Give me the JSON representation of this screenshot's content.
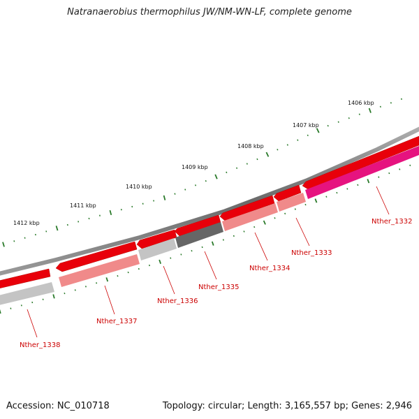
{
  "header": {
    "title": "Natranaerobius thermophilus JW/NM-WN-LF, complete genome"
  },
  "footer": {
    "accession": "Accession: NC_010718",
    "summary": "Topology: circular; Length: 3,165,557 bp; Genes: 2,946"
  },
  "colors": {
    "backbone": "#7a7a7a",
    "tick": "#2a7a2a",
    "label": "#cc0000"
  },
  "kbp_markers": [
    "1406 kbp",
    "1407 kbp",
    "1408 kbp",
    "1409 kbp",
    "1410 kbp",
    "1411 kbp",
    "1412 kbp"
  ],
  "genes": [
    {
      "label": "Nther_1332",
      "color": "#e6137f"
    },
    {
      "label": "Nther_1333",
      "color": "#f08a8a"
    },
    {
      "label": "Nther_1334",
      "color": "#f08a8a"
    },
    {
      "label": "Nther_1335",
      "color": "#666666"
    },
    {
      "label": "Nther_1336",
      "color": "#c4c4c4"
    },
    {
      "label": "Nther_1337",
      "color": "#f08a8a"
    },
    {
      "label": "Nther_1338",
      "color": "#c4c4c4"
    }
  ]
}
